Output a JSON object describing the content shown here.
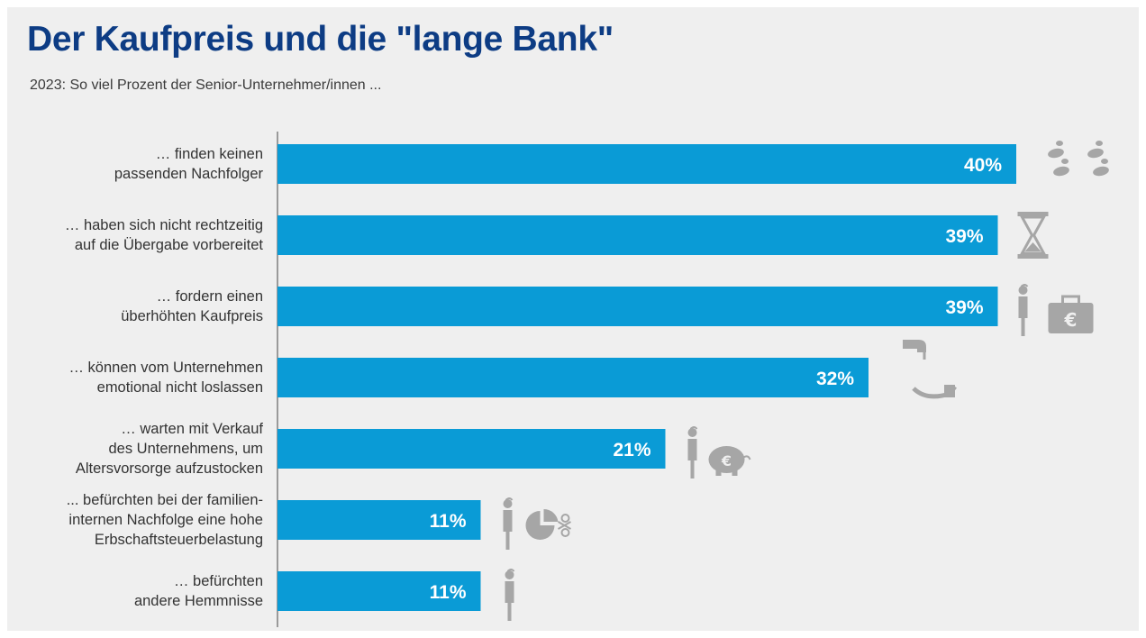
{
  "title": "Der Kaufpreis und die \"lange Bank\"",
  "subtitle": "2023: So viel Prozent der Senior-Unternehmer/innen ...",
  "colors": {
    "bar": "#0a9bd6",
    "title": "#0d3c84",
    "icon": "#a6a6a6",
    "background": "#efefef"
  },
  "chart_data": {
    "type": "bar",
    "orientation": "horizontal",
    "categories": [
      [
        "… finden keinen",
        "passenden Nachfolger"
      ],
      [
        "… haben sich nicht rechtzeitig",
        "auf die Übergabe vorbereitet"
      ],
      [
        "… fordern einen",
        "überhöhten Kaufpreis"
      ],
      [
        "… können vom Unternehmen",
        "emotional nicht loslassen"
      ],
      [
        "… warten mit Verkauf",
        "des Unternehmens, um",
        "Altersvorsorge aufzustocken"
      ],
      [
        "... befürchten bei der familien-",
        "internen Nachfolge eine hohe",
        "Erbschaftsteuerbelastung"
      ],
      [
        "… befürchten",
        "andere Hemmnisse"
      ]
    ],
    "values": [
      40,
      39,
      39,
      32,
      21,
      11,
      11
    ],
    "value_labels": [
      "40%",
      "39%",
      "39%",
      "32%",
      "21%",
      "11%",
      "11%"
    ],
    "unit": "%",
    "icons": [
      "footprints-icon",
      "hourglass-icon",
      "businessman-euro-briefcase-icon",
      "hand-giving-key-icon",
      "thinking-person-piggy-bank-icon",
      "thinking-person-pie-chart-scissors-icon",
      "thinking-person-icon"
    ],
    "xlim": [
      0,
      40
    ],
    "grid": false
  }
}
